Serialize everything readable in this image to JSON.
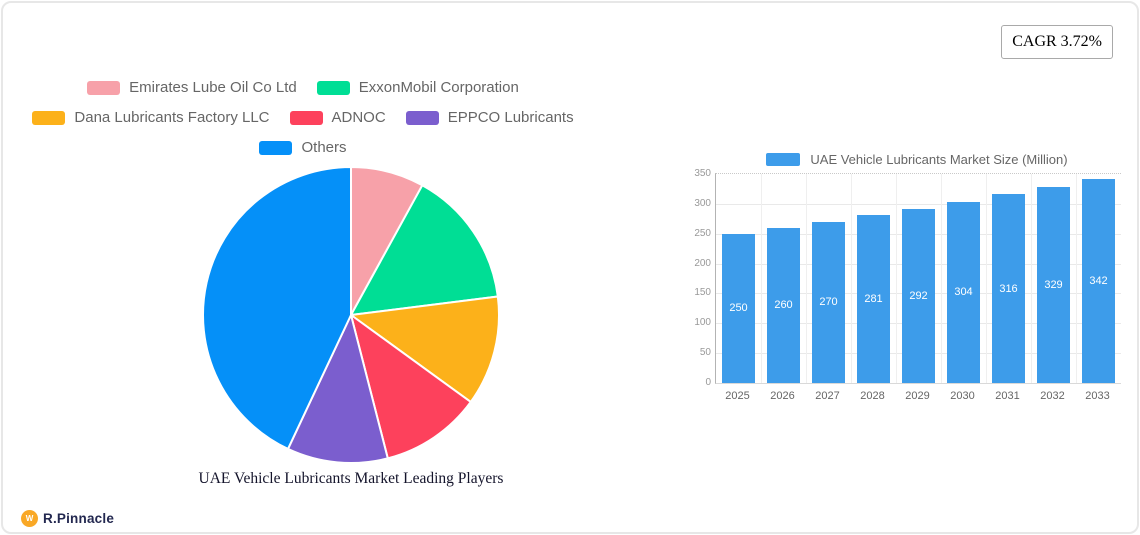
{
  "badge": {
    "label": "CAGR 3.72%"
  },
  "brand": {
    "name": "R.Pinnacle",
    "icon_glyph": "W"
  },
  "chart_data": [
    {
      "type": "pie",
      "title": "UAE Vehicle Lubricants Market Leading Players",
      "legend_position": "top",
      "labels": [
        "Emirates Lube Oil Co  Ltd",
        "ExxonMobil Corporation",
        "Dana Lubricants Factory LLC",
        "ADNOC",
        "EPPCO Lubricants",
        "Others"
      ],
      "values": [
        8,
        15,
        12,
        11,
        11,
        43
      ],
      "colors": [
        "#F7A1A9",
        "#00DE95",
        "#FCB11A",
        "#FD415C",
        "#7B5ECE",
        "#0590F8"
      ],
      "slice_border_color": "#ffffff"
    },
    {
      "type": "bar",
      "legend_label": "UAE Vehicle Lubricants Market Size (Million)",
      "categories": [
        "2025",
        "2026",
        "2027",
        "2028",
        "2029",
        "2030",
        "2031",
        "2032",
        "2033"
      ],
      "values": [
        250,
        260,
        270,
        281,
        292,
        304,
        316,
        329,
        342
      ],
      "bar_color": "#3D9CEA",
      "value_label_color": "#ffffff",
      "ylim": [
        0,
        350
      ],
      "ytick_step": 50,
      "grid": true,
      "legend_position": "top"
    }
  ]
}
